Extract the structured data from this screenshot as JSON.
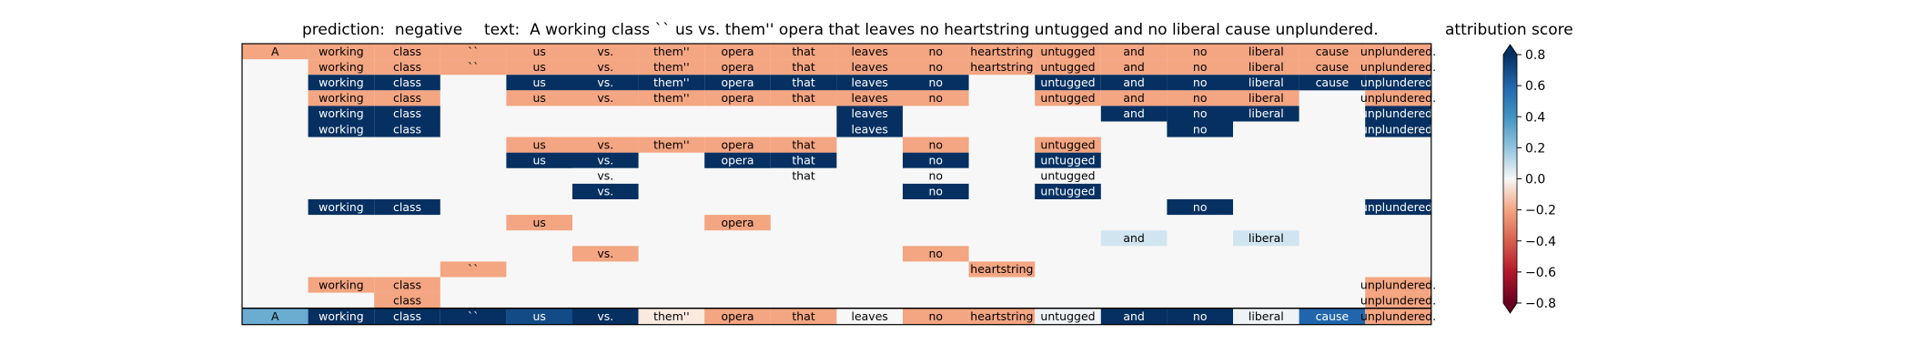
{
  "header": {
    "prediction_text": "prediction:  negative",
    "text_line": "text:  A working class `` us vs. them'' opera that leaves no heartstring untugged and no liberal cause unplundered."
  },
  "chart_data": {
    "type": "heatmap",
    "tokens": [
      "A",
      "working",
      "class",
      "``",
      "us",
      "vs.",
      "them''",
      "opera",
      "that",
      "leaves",
      "no",
      "heartstring",
      "untugged",
      "and",
      "no",
      "liberal",
      "cause",
      "unplundered."
    ],
    "colorbar": {
      "title": "attribution score",
      "vmin": -0.8,
      "vmax": 0.8,
      "ticks": [
        -0.8,
        -0.6,
        -0.4,
        -0.2,
        0.0,
        0.2,
        0.4,
        0.6,
        0.8
      ],
      "tick_labels": [
        "−0.8",
        "−0.6",
        "−0.4",
        "−0.2",
        "0.0",
        "0.2",
        "0.4",
        "0.6",
        "0.8"
      ],
      "colormap": "RdBu"
    },
    "rows": [
      [
        -0.2,
        -0.2,
        -0.2,
        -0.2,
        -0.2,
        -0.2,
        -0.2,
        -0.2,
        -0.2,
        -0.2,
        -0.2,
        -0.2,
        -0.2,
        -0.2,
        -0.2,
        -0.2,
        -0.2,
        -0.2
      ],
      [
        null,
        -0.2,
        -0.2,
        -0.2,
        -0.2,
        -0.2,
        -0.2,
        -0.2,
        -0.2,
        -0.2,
        -0.2,
        -0.2,
        -0.2,
        -0.2,
        -0.2,
        -0.2,
        -0.2,
        -0.2
      ],
      [
        null,
        0.8,
        0.8,
        null,
        0.8,
        0.8,
        0.8,
        0.8,
        0.8,
        0.8,
        0.8,
        null,
        0.8,
        0.8,
        0.8,
        0.8,
        0.8,
        0.8
      ],
      [
        null,
        -0.2,
        -0.2,
        null,
        -0.2,
        -0.2,
        -0.2,
        -0.2,
        -0.2,
        -0.2,
        -0.2,
        null,
        -0.2,
        -0.2,
        -0.2,
        -0.2,
        null,
        -0.2
      ],
      [
        null,
        0.8,
        0.8,
        null,
        null,
        null,
        null,
        null,
        null,
        0.8,
        null,
        null,
        null,
        0.8,
        0.8,
        0.8,
        null,
        0.8
      ],
      [
        null,
        0.8,
        0.8,
        null,
        null,
        null,
        null,
        null,
        null,
        0.8,
        null,
        null,
        null,
        null,
        0.8,
        null,
        null,
        0.8
      ],
      [
        null,
        null,
        null,
        null,
        -0.2,
        -0.2,
        -0.2,
        -0.2,
        -0.2,
        null,
        -0.2,
        null,
        -0.2,
        null,
        null,
        null,
        null,
        null
      ],
      [
        null,
        null,
        null,
        null,
        0.8,
        0.8,
        null,
        0.8,
        0.8,
        null,
        0.8,
        null,
        0.8,
        null,
        null,
        null,
        null,
        null
      ],
      [
        null,
        null,
        null,
        null,
        null,
        0.0,
        null,
        null,
        0.0,
        null,
        0.0,
        null,
        0.0,
        null,
        null,
        null,
        null,
        null
      ],
      [
        null,
        null,
        null,
        null,
        null,
        0.8,
        null,
        null,
        null,
        null,
        0.8,
        null,
        0.8,
        null,
        null,
        null,
        null,
        null
      ],
      [
        null,
        0.8,
        0.8,
        null,
        null,
        null,
        null,
        null,
        null,
        null,
        null,
        null,
        null,
        null,
        0.8,
        null,
        null,
        0.8
      ],
      [
        null,
        null,
        null,
        null,
        -0.2,
        null,
        null,
        -0.2,
        null,
        null,
        null,
        null,
        null,
        null,
        null,
        null,
        null,
        null
      ],
      [
        null,
        null,
        null,
        null,
        null,
        null,
        null,
        null,
        null,
        null,
        null,
        null,
        null,
        0.1,
        null,
        0.1,
        null,
        null
      ],
      [
        null,
        null,
        null,
        null,
        null,
        -0.2,
        null,
        null,
        null,
        null,
        -0.2,
        null,
        null,
        null,
        null,
        null,
        null,
        null
      ],
      [
        null,
        null,
        null,
        -0.2,
        null,
        null,
        null,
        null,
        null,
        null,
        null,
        -0.2,
        null,
        null,
        null,
        null,
        null,
        null
      ],
      [
        null,
        -0.2,
        -0.2,
        null,
        null,
        null,
        null,
        null,
        null,
        null,
        null,
        null,
        null,
        null,
        null,
        null,
        null,
        -0.2
      ],
      [
        null,
        null,
        -0.2,
        null,
        null,
        null,
        null,
        null,
        null,
        null,
        null,
        null,
        null,
        null,
        null,
        null,
        null,
        -0.2
      ]
    ],
    "summary_row": [
      0.3,
      0.8,
      0.8,
      0.8,
      0.7,
      0.8,
      -0.05,
      -0.2,
      -0.2,
      0.0,
      -0.2,
      -0.2,
      0.02,
      0.8,
      0.8,
      0.02,
      0.6,
      -0.2
    ]
  }
}
